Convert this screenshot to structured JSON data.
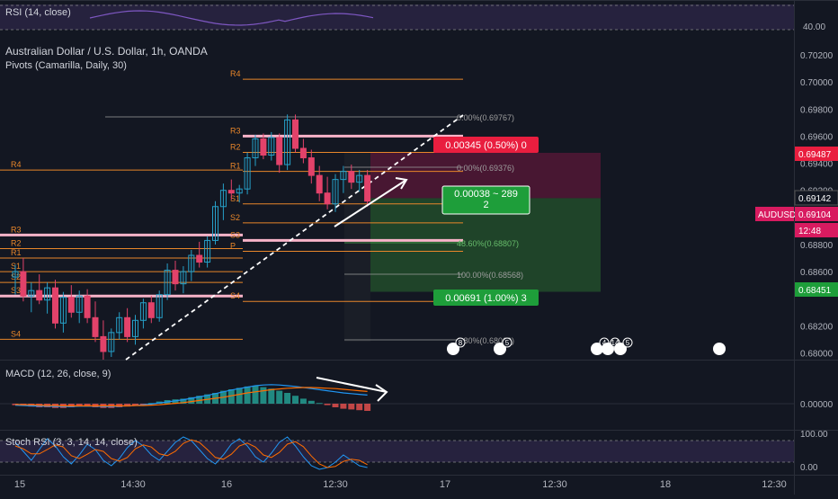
{
  "colors": {
    "bg": "#131722",
    "up": "#26a0c8",
    "down": "#e2426a",
    "pivot_orange": "#e8862a",
    "pivot_pink": "#f7b3c8",
    "text": "#d1d4dc",
    "axis_text": "#b2b5be",
    "macd_line": "#2196f3",
    "signal_line": "#ff6d00",
    "stoch_k": "#2196f3",
    "stoch_d": "#ff6d00",
    "rsi_band": "#7e57c2",
    "tag_red": "#e91e3f",
    "tag_green": "#1e9e3a",
    "tag_pink": "#d81b60"
  },
  "rsi_panel": {
    "title": "RSI (14, close)",
    "axis_label": "40.00"
  },
  "main_panel": {
    "title": "Australian Dollar / U.S. Dollar, 1h, OANDA",
    "indicator": "Pivots (Camarilla, Daily, 30)",
    "pivot_labels_left": [
      "R4",
      "R3",
      "R2",
      "R1",
      "S1",
      "S2",
      "S3",
      "S4"
    ],
    "pivot_labels_right": [
      "R4",
      "R3",
      "R2",
      "R1",
      "S1",
      "S2",
      "S3",
      "P",
      "S4"
    ],
    "fib_labels": [
      "0.00%(0.69767)",
      "0.00%(0.69376)",
      "48.60%(0.68807)",
      "100.00%(0.68568)",
      "1.80%(0.68069)"
    ],
    "position_tags": {
      "target": "0.00345 (0.50%) 0",
      "entry": "0.00038 ~ 289",
      "entry_sub": "2",
      "stop": "0.00691 (1.00%) 3"
    },
    "event_badges": [
      "8",
      "5",
      "4",
      "14",
      "5"
    ]
  },
  "price_axis": {
    "ticks": [
      "0.70200",
      "0.70000",
      "0.69800",
      "0.69600",
      "0.69400",
      "0.69200",
      "0.68800",
      "0.68600",
      "0.68200",
      "0.68000"
    ],
    "tags": [
      {
        "text": "0.69487",
        "color": "#e91e3f"
      },
      {
        "text": "0.69142",
        "color": "#131722"
      },
      {
        "text": "0.69104",
        "color": "#d81b60",
        "prefix": "AUDUSD"
      },
      {
        "text": "12:48",
        "color": "#d81b60"
      },
      {
        "text": "0.68451",
        "color": "#1e9e3a"
      }
    ]
  },
  "macd_panel": {
    "title": "MACD (12, 26, close, 9)",
    "axis_label": "0.00000"
  },
  "stoch_panel": {
    "title": "Stoch RSI (3, 3, 14, 14, close)",
    "axis_top": "100.00",
    "axis_bottom": "0.00"
  },
  "time_axis": {
    "labels": [
      "15",
      "14:30",
      "16",
      "12:30",
      "17",
      "12:30",
      "18",
      "12:30"
    ]
  },
  "chart_data": {
    "type": "candlestick",
    "title": "Australian Dollar / U.S. Dollar, 1h, OANDA",
    "ylim": [
      0.6795,
      0.7026
    ],
    "candles": [
      [
        0.6856,
        0.6865,
        0.6843,
        0.686
      ],
      [
        0.686,
        0.687,
        0.6838,
        0.6842
      ],
      [
        0.6842,
        0.6852,
        0.683,
        0.6846
      ],
      [
        0.6846,
        0.6858,
        0.6836,
        0.6839
      ],
      [
        0.6839,
        0.6852,
        0.6829,
        0.6848
      ],
      [
        0.6848,
        0.6854,
        0.6818,
        0.6822
      ],
      [
        0.6822,
        0.6845,
        0.6815,
        0.6841
      ],
      [
        0.6841,
        0.685,
        0.6826,
        0.683
      ],
      [
        0.683,
        0.6846,
        0.6822,
        0.6842
      ],
      [
        0.6842,
        0.6847,
        0.6822,
        0.6826
      ],
      [
        0.6826,
        0.6838,
        0.6808,
        0.6812
      ],
      [
        0.6812,
        0.6824,
        0.6795,
        0.6801
      ],
      [
        0.6801,
        0.6818,
        0.6797,
        0.6815
      ],
      [
        0.6815,
        0.683,
        0.681,
        0.6826
      ],
      [
        0.6826,
        0.6833,
        0.6808,
        0.6812
      ],
      [
        0.6812,
        0.6828,
        0.6806,
        0.6824
      ],
      [
        0.6824,
        0.684,
        0.6818,
        0.6837
      ],
      [
        0.6837,
        0.6842,
        0.6822,
        0.6826
      ],
      [
        0.6826,
        0.6846,
        0.6823,
        0.6843
      ],
      [
        0.6843,
        0.6866,
        0.6839,
        0.6861
      ],
      [
        0.6861,
        0.6868,
        0.6846,
        0.6851
      ],
      [
        0.6851,
        0.6864,
        0.6844,
        0.686
      ],
      [
        0.686,
        0.6876,
        0.6853,
        0.6872
      ],
      [
        0.6872,
        0.6882,
        0.6863,
        0.6867
      ],
      [
        0.6867,
        0.6886,
        0.6863,
        0.6883
      ],
      [
        0.6883,
        0.6912,
        0.688,
        0.6908
      ],
      [
        0.6908,
        0.6925,
        0.6898,
        0.692
      ],
      [
        0.692,
        0.6928,
        0.6913,
        0.6918
      ],
      [
        0.6918,
        0.6924,
        0.6911,
        0.6921
      ],
      [
        0.6921,
        0.6948,
        0.6917,
        0.6944
      ],
      [
        0.6944,
        0.6961,
        0.6938,
        0.6958
      ],
      [
        0.6958,
        0.6962,
        0.6943,
        0.6946
      ],
      [
        0.6946,
        0.6963,
        0.6942,
        0.6959
      ],
      [
        0.6959,
        0.6962,
        0.6933,
        0.6939
      ],
      [
        0.6939,
        0.6976,
        0.6935,
        0.6972
      ],
      [
        0.6972,
        0.6976,
        0.6948,
        0.6951
      ],
      [
        0.6951,
        0.6958,
        0.694,
        0.6944
      ],
      [
        0.6944,
        0.695,
        0.6925,
        0.6931
      ],
      [
        0.6931,
        0.6938,
        0.6912,
        0.6918
      ],
      [
        0.6918,
        0.693,
        0.6906,
        0.691
      ],
      [
        0.691,
        0.6932,
        0.6904,
        0.6928
      ],
      [
        0.6928,
        0.6938,
        0.6918,
        0.6934
      ],
      [
        0.6934,
        0.6939,
        0.6921,
        0.6926
      ],
      [
        0.6926,
        0.6935,
        0.6919,
        0.6931
      ],
      [
        0.6931,
        0.6935,
        0.6908,
        0.6912
      ]
    ],
    "pivots_day1": {
      "R4": 0.6935,
      "R3": 0.6887,
      "R2": 0.6877,
      "R1": 0.687,
      "S1": 0.686,
      "S2": 0.6852,
      "S3": 0.6842,
      "S4": 0.681
    },
    "pivots_day2": {
      "R4": 0.7002,
      "R3": 0.696,
      "R2": 0.6948,
      "R1": 0.6934,
      "S1": 0.691,
      "S2": 0.6896,
      "S3": 0.6883,
      "P": 0.6875,
      "S4": 0.6838
    },
    "trade": {
      "entry": 0.69142,
      "target": 0.69487,
      "stop": 0.68451
    },
    "macd_hist": [
      -0.2,
      -0.3,
      -0.4,
      -0.5,
      -0.5,
      -0.6,
      -0.6,
      -0.5,
      -0.4,
      -0.4,
      -0.5,
      -0.6,
      -0.6,
      -0.5,
      -0.4,
      -0.3,
      -0.1,
      0.1,
      0.3,
      0.5,
      0.6,
      0.7,
      0.9,
      1.1,
      1.3,
      1.5,
      1.8,
      2.0,
      2.2,
      2.4,
      2.5,
      2.3,
      2.1,
      1.8,
      1.5,
      1.1,
      0.7,
      0.4,
      0.1,
      -0.2,
      -0.5,
      -0.7,
      -0.8,
      -0.9,
      -1.0
    ],
    "macd_line": [
      -0.4,
      -0.5,
      -0.6,
      -0.7,
      -0.7,
      -0.8,
      -0.8,
      -0.8,
      -0.7,
      -0.7,
      -0.7,
      -0.8,
      -0.8,
      -0.7,
      -0.6,
      -0.5,
      -0.3,
      -0.1,
      0.2,
      0.5,
      0.8,
      1.1,
      1.5,
      1.9,
      2.3,
      2.8,
      3.3,
      3.8,
      4.2,
      4.6,
      5.0,
      5.2,
      5.3,
      5.2,
      5.0,
      4.8,
      4.5,
      4.2,
      3.9,
      3.6,
      3.3,
      3.0,
      2.8,
      2.6,
      2.4
    ],
    "signal_line": [
      -0.2,
      -0.3,
      -0.3,
      -0.4,
      -0.5,
      -0.5,
      -0.6,
      -0.6,
      -0.6,
      -0.6,
      -0.6,
      -0.6,
      -0.6,
      -0.6,
      -0.6,
      -0.5,
      -0.5,
      -0.4,
      -0.3,
      -0.1,
      0.1,
      0.3,
      0.6,
      0.9,
      1.2,
      1.5,
      1.8,
      2.2,
      2.6,
      3.0,
      3.3,
      3.6,
      3.9,
      4.1,
      4.3,
      4.4,
      4.5,
      4.5,
      4.4,
      4.3,
      4.2,
      4.0,
      3.8,
      3.6,
      3.4
    ],
    "stoch_k": [
      80,
      55,
      30,
      60,
      90,
      70,
      40,
      20,
      45,
      75,
      60,
      30,
      15,
      35,
      65,
      85,
      70,
      45,
      30,
      55,
      80,
      95,
      85,
      60,
      35,
      20,
      45,
      75,
      90,
      70,
      40,
      25,
      50,
      80,
      95,
      70,
      40,
      15,
      5,
      10,
      25,
      45,
      30,
      15,
      10
    ],
    "stoch_d": [
      70,
      62,
      48,
      48,
      60,
      73,
      67,
      43,
      35,
      47,
      60,
      55,
      35,
      28,
      38,
      62,
      73,
      67,
      48,
      43,
      55,
      77,
      87,
      80,
      60,
      38,
      33,
      47,
      70,
      78,
      67,
      45,
      38,
      52,
      75,
      82,
      68,
      42,
      20,
      10,
      13,
      27,
      33,
      30,
      18
    ]
  }
}
